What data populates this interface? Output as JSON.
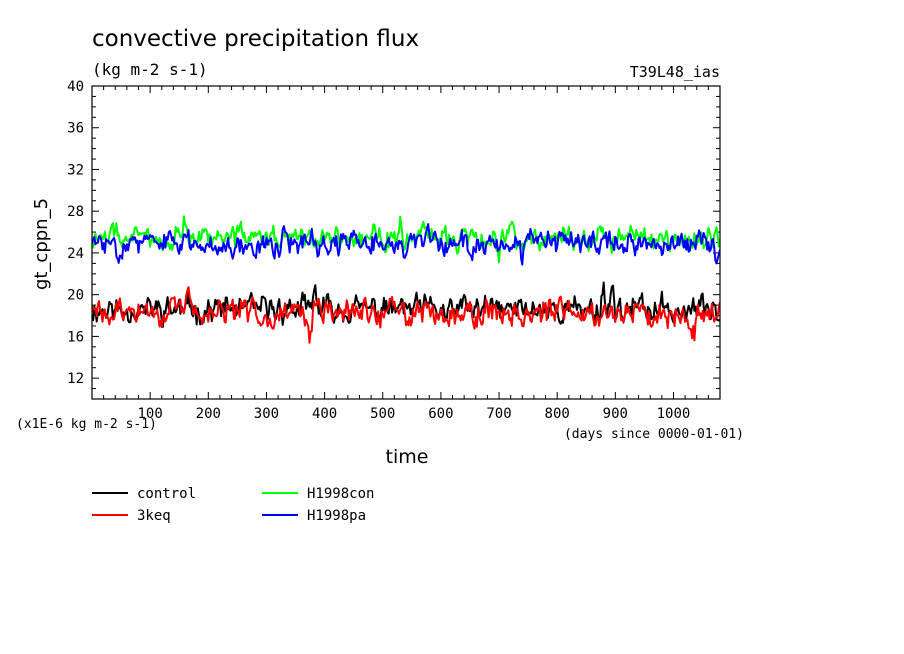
{
  "chart_data": {
    "type": "line",
    "title": "convective precipitation flux",
    "subtitle": "(kg m-2 s-1)",
    "run_label": "T39L48_ias",
    "ylabel": "gt_cppn_5",
    "xlabel": "time",
    "xunits": "(days since 0000-01-01)",
    "yunits": "(x1E-6 kg m-2 s-1)",
    "xlim": [
      0,
      1080
    ],
    "ylim": [
      10,
      40
    ],
    "xticks": [
      100,
      200,
      300,
      400,
      500,
      600,
      700,
      800,
      900,
      1000
    ],
    "yticks": [
      12,
      16,
      20,
      24,
      28,
      32,
      36,
      40
    ],
    "grid": false,
    "legend_position": "bottom-left",
    "series": [
      {
        "name": "control",
        "color": "#000000",
        "mean": 18.6,
        "amp": 1.05,
        "seed": 11,
        "features": [
          [
            385,
            20.8
          ],
          [
            880,
            21.2
          ],
          [
            895,
            20.9
          ],
          [
            610,
            17.2
          ]
        ]
      },
      {
        "name": "3keq",
        "color": "#ff0000",
        "mean": 18.3,
        "amp": 1.05,
        "seed": 29,
        "features": [
          [
            165,
            20.7
          ],
          [
            375,
            16.1
          ],
          [
            1035,
            16.2
          ],
          [
            30,
            17.0
          ]
        ]
      },
      {
        "name": "H1998con",
        "color": "#00ff00",
        "mean": 25.5,
        "amp": 0.95,
        "seed": 47,
        "features": [
          [
            530,
            27.9
          ],
          [
            160,
            27.6
          ],
          [
            700,
            23.5
          ]
        ]
      },
      {
        "name": "H1998pa",
        "color": "#0000ff",
        "mean": 24.9,
        "amp": 0.95,
        "seed": 83,
        "features": [
          [
            330,
            27.5
          ],
          [
            1075,
            22.6
          ],
          [
            740,
            23.0
          ],
          [
            280,
            23.2
          ]
        ]
      }
    ]
  }
}
